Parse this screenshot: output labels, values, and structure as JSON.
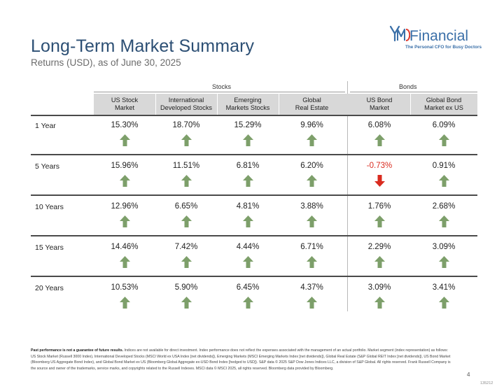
{
  "title": "Long-Term Market Summary",
  "subtitle": "Returns (USD), as of June 30, 2025",
  "logo": {
    "word": "Financial",
    "tagline": "The Personal CFO for Busy Doctors",
    "mark": "YMD"
  },
  "groups": {
    "stocks": "Stocks",
    "bonds": "Bonds"
  },
  "columns": [
    {
      "line1": "US Stock",
      "line2": "Market"
    },
    {
      "line1": "International",
      "line2": "Developed Stocks"
    },
    {
      "line1": "Emerging",
      "line2": "Markets Stocks"
    },
    {
      "line1": "Global",
      "line2": "Real Estate"
    },
    {
      "line1": "US Bond",
      "line2": "Market"
    },
    {
      "line1": "Global Bond",
      "line2": "Market ex US"
    }
  ],
  "rows": [
    {
      "label": "1 Year",
      "values": [
        "15.30%",
        "18.70%",
        "15.29%",
        "9.96%",
        "6.08%",
        "6.09%"
      ],
      "dirs": [
        "up",
        "up",
        "up",
        "up",
        "up",
        "up"
      ]
    },
    {
      "label": "5 Years",
      "values": [
        "15.96%",
        "11.51%",
        "6.81%",
        "6.20%",
        "-0.73%",
        "0.91%"
      ],
      "dirs": [
        "up",
        "up",
        "up",
        "up",
        "down",
        "up"
      ]
    },
    {
      "label": "10 Years",
      "values": [
        "12.96%",
        "6.65%",
        "4.81%",
        "3.88%",
        "1.76%",
        "2.68%"
      ],
      "dirs": [
        "up",
        "up",
        "up",
        "up",
        "up",
        "up"
      ]
    },
    {
      "label": "15 Years",
      "values": [
        "14.46%",
        "7.42%",
        "4.44%",
        "6.71%",
        "2.29%",
        "3.09%"
      ],
      "dirs": [
        "up",
        "up",
        "up",
        "up",
        "up",
        "up"
      ]
    },
    {
      "label": "20 Years",
      "values": [
        "10.53%",
        "5.90%",
        "6.45%",
        "4.37%",
        "3.09%",
        "3.41%"
      ],
      "dirs": [
        "up",
        "up",
        "up",
        "up",
        "up",
        "up"
      ]
    }
  ],
  "colors": {
    "up": "#7d9f6a",
    "down": "#d92b1f",
    "title": "#2c4f74",
    "header_band": "#d8d8d8"
  },
  "footnote": {
    "bold": "Past performance is not a guarantee of future results.",
    "text": " Indices are not available for direct investment. Index performance does not reflect the expenses associated with the management of an actual portfolio. Market segment (index representation) as follows: US Stock Market (Russell 3000 Index), International Developed Stocks (MSCI World ex USA Index [net dividends]), Emerging Markets (MSCI Emerging Markets Index [net dividends]), Global Real Estate (S&P Global REIT Index [net dividends]), US Bond Market (Bloomberg US Aggregate Bond Index), and Global Bond Market ex US (Bloomberg Global Aggregate ex-USD Bond Index [hedged to USD]). S&P data © 2025 S&P Dow Jones Indices LLC, a division of S&P Global. All rights reserved. Frank Russell Company is the source and owner of the trademarks, service marks, and copyrights related to the Russell Indexes. MSCI data © MSCI 2025, all rights reserved. Bloomberg data provided by Bloomberg."
  },
  "page_number": "4",
  "doc_code": "135212"
}
